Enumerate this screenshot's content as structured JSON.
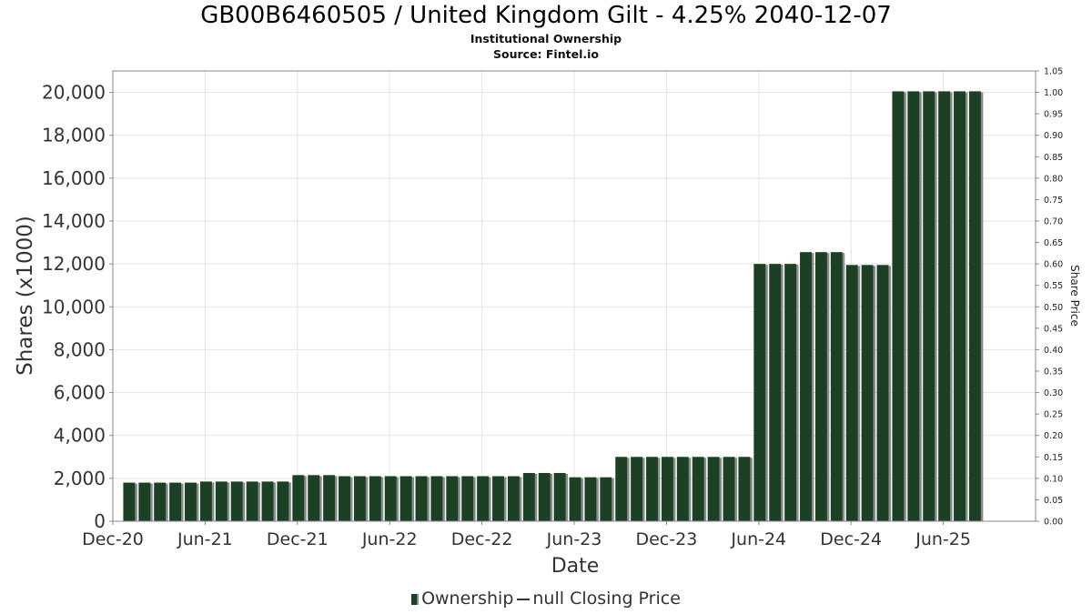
{
  "chart_data": {
    "type": "bar",
    "title": "GB00B6460505 / United Kingdom Gilt - 4.25% 2040-12-07",
    "subtitle": "Institutional Ownership",
    "source": "Source: Fintel.io",
    "xlabel": "Date",
    "ylabel": "Shares (x1000)",
    "y2label": "Share Price",
    "ylim": [
      0,
      21000
    ],
    "y2lim": [
      0,
      1.05
    ],
    "grid": true,
    "legend_position": "bottom-center",
    "y_ticks": [
      "0",
      "2,000",
      "4,000",
      "6,000",
      "8,000",
      "10,000",
      "12,000",
      "14,000",
      "16,000",
      "18,000",
      "20,000"
    ],
    "y2_ticks": [
      "0.00",
      "0.05",
      "0.10",
      "0.15",
      "0.20",
      "0.25",
      "0.30",
      "0.35",
      "0.40",
      "0.45",
      "0.50",
      "0.55",
      "0.60",
      "0.65",
      "0.70",
      "0.75",
      "0.80",
      "0.85",
      "0.90",
      "0.95",
      "1.00",
      "1.05"
    ],
    "x_ticks": [
      "Dec-20",
      "Jun-21",
      "Dec-21",
      "Jun-22",
      "Dec-22",
      "Jun-23",
      "Dec-23",
      "Jun-24",
      "Dec-24",
      "Jun-25"
    ],
    "x_start": "2020-12-01",
    "x_end": "2025-12-01",
    "bar_color": "#1b4024",
    "bar_shadow_color": "#8a8a8a",
    "series": [
      {
        "name": "Ownership",
        "x": [
          "2021-01",
          "2021-02",
          "2021-03",
          "2021-04",
          "2021-05",
          "2021-06",
          "2021-07",
          "2021-08",
          "2021-09",
          "2021-10",
          "2021-11",
          "2021-12",
          "2022-01",
          "2022-02",
          "2022-03",
          "2022-04",
          "2022-05",
          "2022-06",
          "2022-07",
          "2022-08",
          "2022-09",
          "2022-10",
          "2022-11",
          "2022-12",
          "2023-01",
          "2023-02",
          "2023-03",
          "2023-04",
          "2023-05",
          "2023-06",
          "2023-07",
          "2023-08",
          "2023-09",
          "2023-10",
          "2023-11",
          "2023-12",
          "2024-01",
          "2024-02",
          "2024-03",
          "2024-04",
          "2024-05",
          "2024-06",
          "2024-07",
          "2024-08",
          "2024-09",
          "2024-10",
          "2024-11",
          "2024-12",
          "2025-01",
          "2025-02",
          "2025-03",
          "2025-04",
          "2025-05",
          "2025-06",
          "2025-07",
          "2025-08"
        ],
        "values": [
          1800,
          1800,
          1800,
          1800,
          1800,
          1850,
          1850,
          1850,
          1850,
          1850,
          1850,
          2150,
          2150,
          2150,
          2100,
          2100,
          2100,
          2100,
          2100,
          2100,
          2100,
          2100,
          2100,
          2100,
          2100,
          2100,
          2250,
          2250,
          2250,
          2050,
          2050,
          2050,
          3000,
          3000,
          3000,
          3000,
          3000,
          3000,
          3000,
          3000,
          3000,
          12000,
          12000,
          12000,
          12550,
          12550,
          12550,
          11950,
          11950,
          11950,
          20050,
          20050,
          20050,
          20050,
          20050,
          20050
        ]
      },
      {
        "name": "null Closing Price",
        "x": [],
        "values": []
      }
    ]
  }
}
